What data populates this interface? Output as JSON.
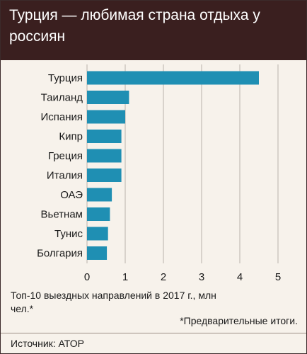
{
  "title": "Турция — любимая страна отдыха у россиян",
  "note": "Топ-10 выездных направлений в 2017 г., млн чел.*",
  "footnote": "*Предварительные итоги.",
  "source": "Источник: АТОР",
  "colors": {
    "header_bg": "#3a1f1f",
    "panel_bg": "#f7f2eb",
    "bar": "#1f8fb3",
    "grid": "#b9b2ab"
  },
  "chart_data": {
    "type": "bar",
    "orientation": "horizontal",
    "categories": [
      "Турция",
      "Таиланд",
      "Испания",
      "Кипр",
      "Греция",
      "Италия",
      "ОАЭ",
      "Вьетнам",
      "Тунис",
      "Болгария"
    ],
    "values": [
      4.5,
      1.1,
      1.0,
      0.9,
      0.9,
      0.9,
      0.65,
      0.6,
      0.55,
      0.52
    ],
    "xlim": [
      0,
      5
    ],
    "xticks": [
      "0",
      "1",
      "2",
      "3",
      "4",
      "5"
    ],
    "grid": "vertical"
  }
}
